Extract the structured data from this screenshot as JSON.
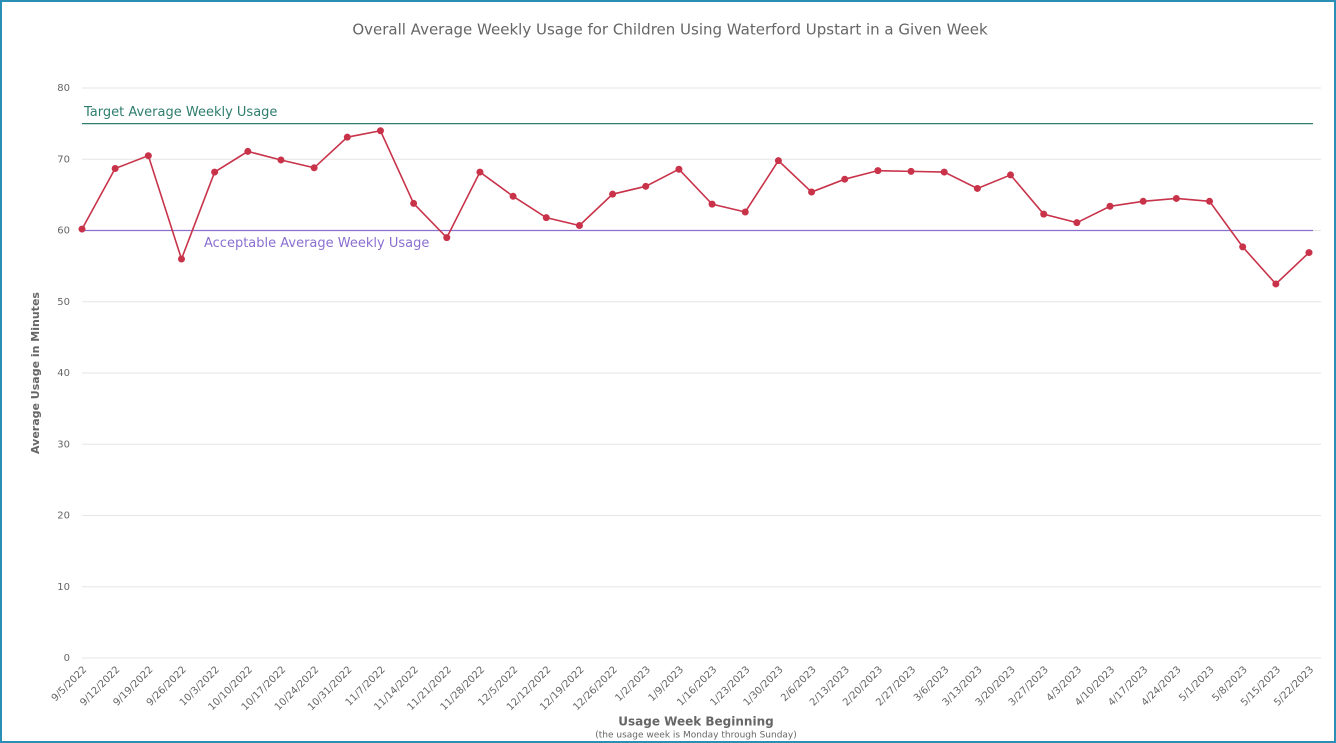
{
  "chart_data": {
    "type": "line",
    "title": "Overall Average Weekly Usage for Children Using Waterford Upstart in a Given Week",
    "x_label": "Usage Week Beginning",
    "x_sublabel": "(the usage week is Monday through Sunday)",
    "y_label": "Average Usage in Minutes",
    "categories": [
      "9/5/2022",
      "9/12/2022",
      "9/19/2022",
      "9/26/2022",
      "10/3/2022",
      "10/10/2022",
      "10/17/2022",
      "10/24/2022",
      "10/31/2022",
      "11/7/2022",
      "11/14/2022",
      "11/21/2022",
      "11/28/2022",
      "12/5/2022",
      "12/12/2022",
      "12/19/2022",
      "12/26/2022",
      "1/2/2023",
      "1/9/2023",
      "1/16/2023",
      "1/23/2023",
      "1/30/2023",
      "2/6/2023",
      "2/13/2023",
      "2/20/2023",
      "2/27/2023",
      "3/6/2023",
      "3/13/2023",
      "3/20/2023",
      "3/27/2023",
      "4/3/2023",
      "4/10/2023",
      "4/17/2023",
      "4/24/2023",
      "5/1/2023",
      "5/8/2023",
      "5/15/2023",
      "5/22/2023"
    ],
    "series": [
      {
        "name": "Average Weekly Usage",
        "color": "#c8334a",
        "values": [
          60.2,
          68.7,
          70.5,
          56,
          68.2,
          71.1,
          69.9,
          68.8,
          73.1,
          74,
          63.8,
          59,
          68.2,
          64.8,
          61.8,
          60.7,
          65.1,
          66.2,
          68.6,
          63.7,
          62.6,
          69.8,
          65.4,
          67.2,
          68.4,
          68.3,
          68.2,
          65.9,
          67.8,
          62.3,
          61.1,
          63.4,
          64.1,
          64.5,
          64.1,
          57.7,
          52.5,
          56.9
        ]
      }
    ],
    "reference_lines": [
      {
        "label": "Target Average Weekly Usage",
        "value": 75,
        "color": "#2e7d6e"
      },
      {
        "label": "Acceptable Average Weekly Usage",
        "value": 60,
        "color": "#8a6fd0"
      }
    ],
    "ylim": [
      0,
      80
    ],
    "yticks": [
      0,
      10,
      20,
      30,
      40,
      50,
      60,
      70,
      80
    ],
    "grid": true
  }
}
